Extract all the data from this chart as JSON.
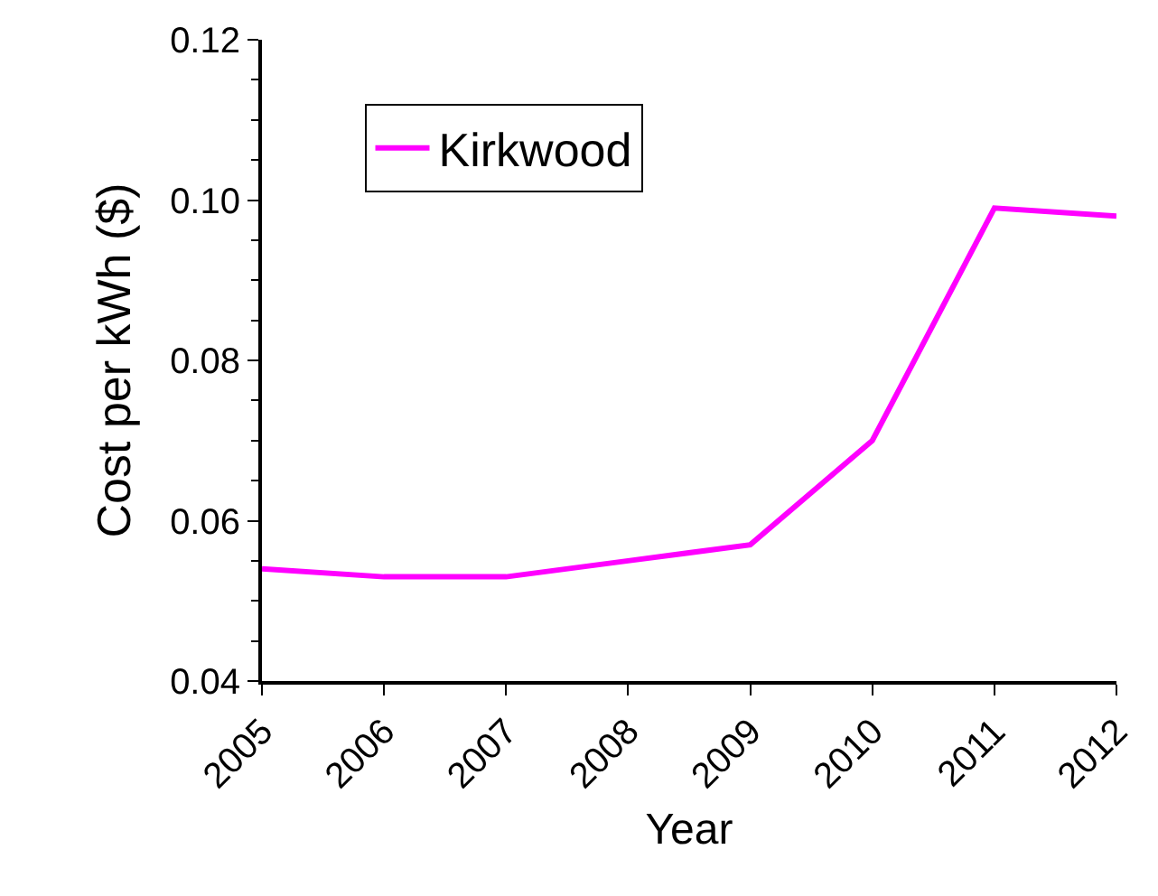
{
  "chart_data": {
    "type": "line",
    "xlabel": "Year",
    "ylabel": "Cost per kWh ($)",
    "x": [
      2005,
      2006,
      2007,
      2008,
      2009,
      2010,
      2011,
      2012
    ],
    "series": [
      {
        "name": "Kirkwood",
        "color": "#ff00ff",
        "values": [
          0.054,
          0.053,
          0.053,
          0.055,
          0.057,
          0.07,
          0.099,
          0.098
        ]
      }
    ],
    "xlim": [
      2005,
      2012
    ],
    "xticks": [
      2005,
      2006,
      2007,
      2008,
      2009,
      2010,
      2011,
      2012
    ],
    "ylim": [
      0.04,
      0.12
    ],
    "yticks": [
      {
        "value": 0.04,
        "label": "0.04"
      },
      {
        "value": 0.06,
        "label": "0.06"
      },
      {
        "value": 0.08,
        "label": "0.08"
      },
      {
        "value": 0.1,
        "label": "0.10"
      },
      {
        "value": 0.12,
        "label": "0.12"
      }
    ],
    "grid": false,
    "legend": "top left",
    "marker": "none",
    "line_style": "solid"
  }
}
